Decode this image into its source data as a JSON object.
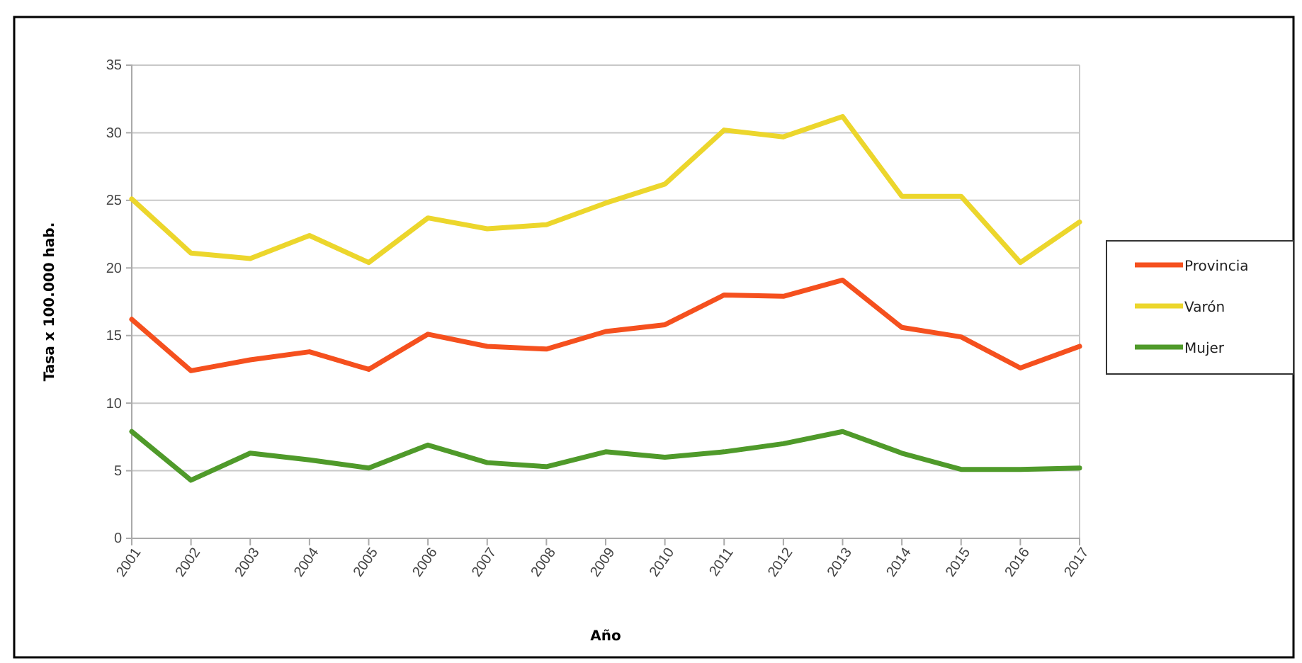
{
  "chart_data": {
    "type": "line",
    "xlabel": "Año",
    "ylabel": "Tasa x 100.000 hab.",
    "categories": [
      "2001",
      "2002",
      "2003",
      "2004",
      "2005",
      "2006",
      "2007",
      "2008",
      "2009",
      "2010",
      "2011",
      "2012",
      "2013",
      "2014",
      "2015",
      "2016",
      "2017"
    ],
    "series": [
      {
        "name": "Provincia",
        "color": "#f5501e",
        "values": [
          16.2,
          12.4,
          13.2,
          13.8,
          12.5,
          15.1,
          14.2,
          14.0,
          15.3,
          15.8,
          18.0,
          17.9,
          19.1,
          15.6,
          14.9,
          12.6,
          14.2
        ]
      },
      {
        "name": "Varón",
        "color": "#ecd62c",
        "values": [
          25.1,
          21.1,
          20.7,
          22.4,
          20.4,
          23.7,
          22.9,
          23.2,
          24.8,
          26.2,
          30.2,
          29.7,
          31.2,
          25.3,
          25.3,
          20.4,
          23.4
        ]
      },
      {
        "name": "Mujer",
        "color": "#4f9a2a",
        "values": [
          7.9,
          4.3,
          6.3,
          5.8,
          5.2,
          6.9,
          5.6,
          5.3,
          6.4,
          6.0,
          6.4,
          7.0,
          7.9,
          6.3,
          5.1,
          5.1,
          5.2
        ]
      }
    ],
    "ylim": [
      0,
      35
    ],
    "yticks": [
      0,
      5,
      10,
      15,
      20,
      25,
      30,
      35
    ],
    "grid": "y",
    "legend": "right",
    "marker": "none",
    "line_style": "solid"
  }
}
